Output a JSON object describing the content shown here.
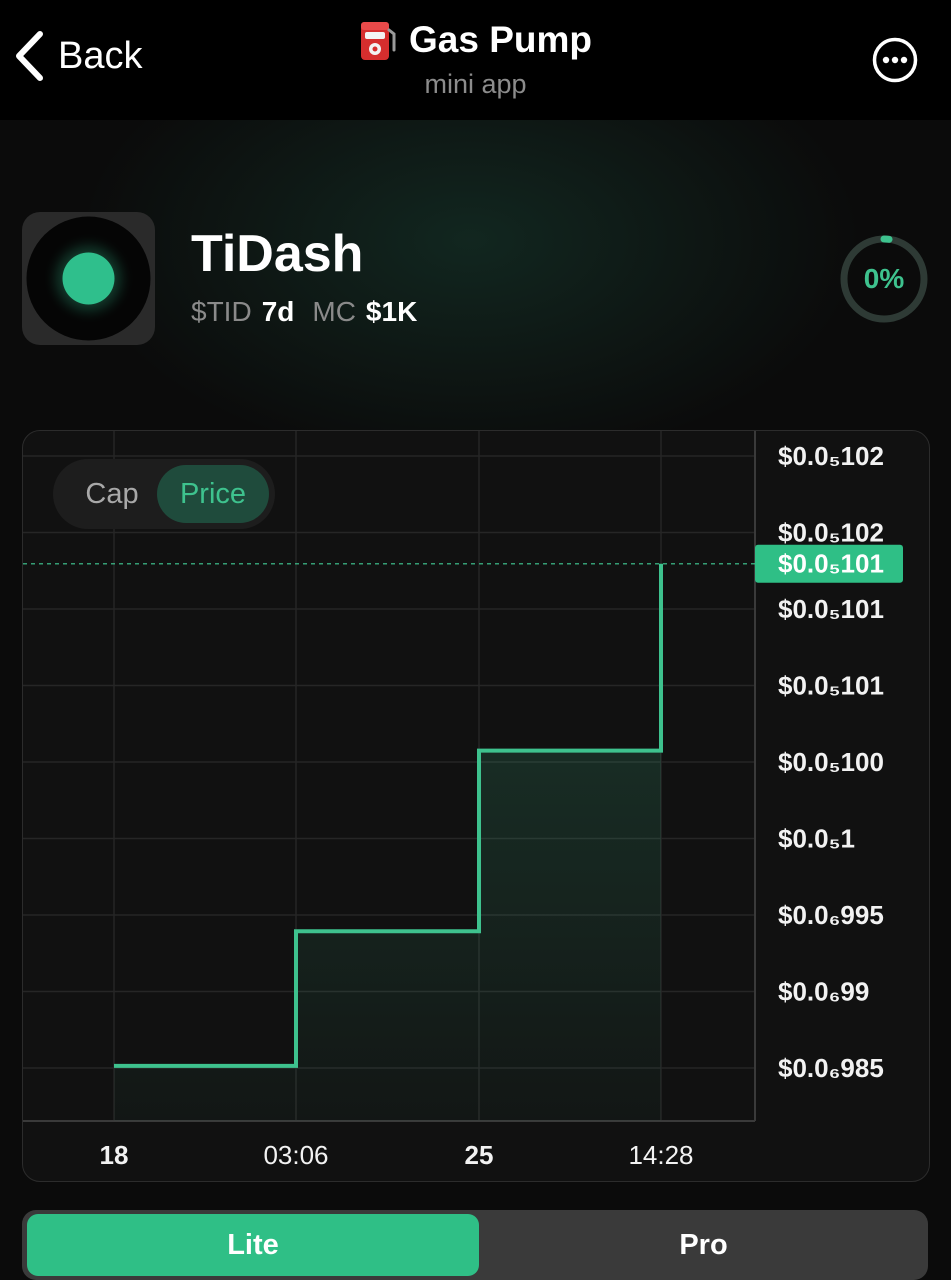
{
  "header": {
    "back_label": "Back",
    "title": "Gas Pump",
    "subtitle": "mini app",
    "title_icon": "fuel-pump-icon",
    "more_icon": "more-dots-icon"
  },
  "token": {
    "name": "TiDash",
    "ticker": "$TID",
    "age": "7d",
    "mc_label": "MC",
    "mc_value": "$1K",
    "progress_label": "0%",
    "progress_value": 0.02,
    "accent": "#3ec28e"
  },
  "chart_toggle": {
    "cap_label": "Cap",
    "price_label": "Price",
    "selected": "Price"
  },
  "chart_data": {
    "type": "line",
    "step": true,
    "x_labels": [
      {
        "label": "18",
        "bold": true
      },
      {
        "label": "03:06",
        "bold": false
      },
      {
        "label": "25",
        "bold": true
      },
      {
        "label": "14:28",
        "bold": false
      }
    ],
    "y_ticks": [
      {
        "label": "$0.0₅102",
        "value": 1.02e-06
      },
      {
        "label": "$0.0₅102",
        "value": 1.0175e-06
      },
      {
        "label": "$0.0₅101",
        "value": 1.0125e-06
      },
      {
        "label": "$0.0₅101",
        "value": 1.01e-06
      },
      {
        "label": "$0.0₅100",
        "value": 1.0025e-06
      },
      {
        "label": "$0.0₅1",
        "value": 1e-06
      },
      {
        "label": "$0.0₆995",
        "value": 9.95e-07
      },
      {
        "label": "$0.0₆99",
        "value": 9.9e-07
      },
      {
        "label": "$0.0₆985",
        "value": 9.85e-07
      }
    ],
    "ylim": [
      9.828e-07,
      1.0215e-06
    ],
    "points": [
      {
        "x": 0,
        "y": 9.83e-07
      },
      {
        "x": 1,
        "y": 9.915e-07
      },
      {
        "x": 2,
        "y": 1.0029e-06
      },
      {
        "x": 3,
        "y": 1.0147e-06
      }
    ],
    "current_price_label": "$0.0₅101",
    "line_color": "#3ec28e",
    "grid": true
  },
  "mode_tabs": {
    "lite_label": "Lite",
    "pro_label": "Pro",
    "selected": "Lite"
  }
}
